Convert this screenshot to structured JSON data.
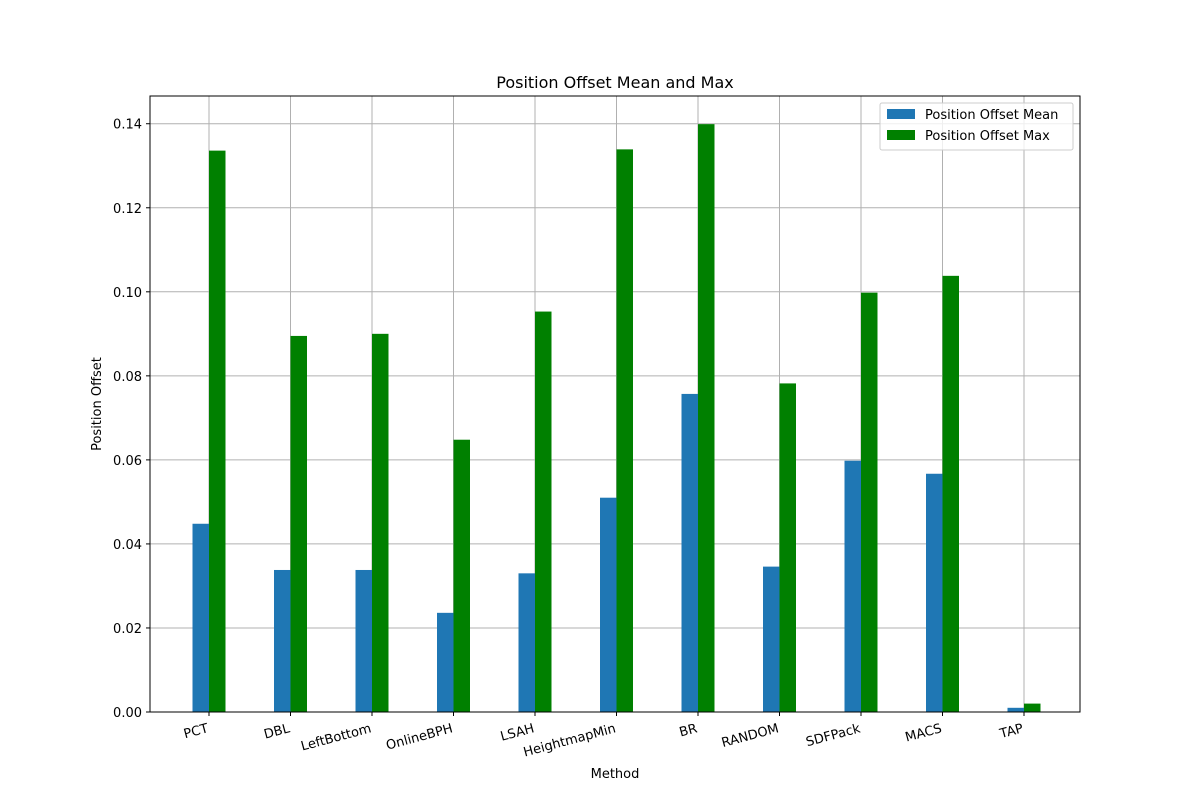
{
  "chart_data": {
    "type": "bar",
    "title": "Position Offset Mean and Max",
    "xlabel": "Method",
    "ylabel": "Position Offset",
    "categories": [
      "PCT",
      "DBL",
      "LeftBottom",
      "OnlineBPH",
      "LSAH",
      "HeightmapMin",
      "BR",
      "RANDOM",
      "SDFPack",
      "MACS",
      "TAP"
    ],
    "series": [
      {
        "name": "Position Offset Mean",
        "color": "#1f77b4",
        "values": [
          0.0448,
          0.0338,
          0.0338,
          0.0236,
          0.033,
          0.051,
          0.0757,
          0.0346,
          0.0598,
          0.0567,
          0.001
        ]
      },
      {
        "name": "Position Offset Max",
        "color": "#008000",
        "values": [
          0.1336,
          0.0895,
          0.09,
          0.0648,
          0.0953,
          0.1339,
          0.1399,
          0.0782,
          0.0998,
          0.1038,
          0.002
        ]
      }
    ],
    "ylim": [
      0,
      0.1466
    ],
    "yticks": [
      "0.00",
      "0.02",
      "0.04",
      "0.06",
      "0.08",
      "0.10",
      "0.12",
      "0.14"
    ],
    "grid": true,
    "legend_position": "top-right"
  }
}
